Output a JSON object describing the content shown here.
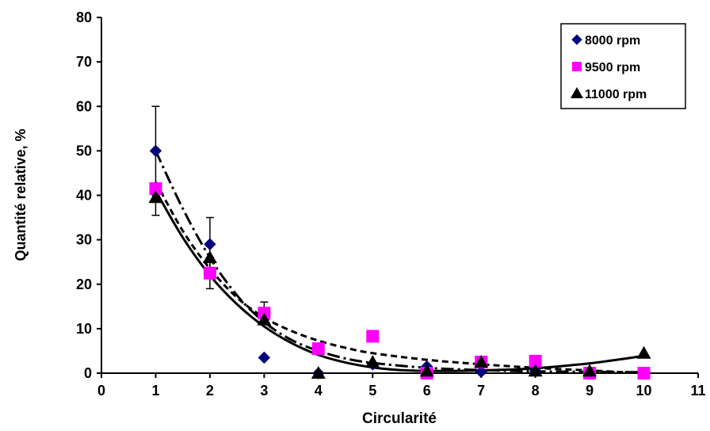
{
  "chart_data": {
    "type": "scatter",
    "xlabel": "Circularité",
    "ylabel": "Quantité relative, %",
    "xlim": [
      0,
      11
    ],
    "ylim": [
      0,
      80
    ],
    "x_ticks": [
      "0",
      "1",
      "2",
      "3",
      "4",
      "5",
      "6",
      "7",
      "8",
      "9",
      "10",
      "11"
    ],
    "y_ticks": [
      "0",
      "10",
      "20",
      "30",
      "40",
      "50",
      "60",
      "70",
      "80"
    ],
    "grid": false,
    "legend_position": "top-right",
    "series": [
      {
        "name": "8000 rpm",
        "marker": "diamond",
        "color": "#000080",
        "x": [
          1,
          2,
          3,
          4,
          5,
          6,
          7,
          8,
          9,
          10
        ],
        "y": [
          50,
          29,
          3.5,
          0,
          2,
          1.5,
          0.3,
          0.5,
          0.3,
          0
        ],
        "error_bars": [
          {
            "x": 1,
            "low": 40,
            "high": 60
          },
          {
            "x": 2,
            "low": 23,
            "high": 35
          }
        ],
        "trendline": {
          "style": "dash-dot",
          "x": [
            1,
            1.5,
            2,
            2.5,
            3,
            3.5,
            4,
            4.5,
            5,
            6,
            7,
            8,
            9,
            10
          ],
          "y": [
            50,
            37,
            26,
            17.5,
            11.5,
            7.5,
            5,
            3.3,
            2.3,
            1.2,
            0.7,
            0.4,
            0.3,
            0.2
          ]
        }
      },
      {
        "name": "9500 rpm",
        "marker": "square",
        "color": "#FF00FF",
        "x": [
          1,
          2,
          3,
          4,
          5,
          6,
          7,
          8,
          9,
          10
        ],
        "y": [
          41.5,
          22.5,
          13.5,
          5.5,
          8.3,
          0,
          2.5,
          2.7,
          0,
          0
        ],
        "error_bars": [
          {
            "x": 2,
            "low": 19,
            "high": 26
          },
          {
            "x": 3,
            "low": 11.5,
            "high": 16
          }
        ],
        "trendline": {
          "style": "dashed",
          "x": [
            1,
            1.5,
            2,
            2.5,
            3,
            3.5,
            4,
            4.5,
            5,
            6,
            7,
            8,
            9,
            10
          ],
          "y": [
            43,
            32,
            23.5,
            17,
            12.5,
            9.5,
            7.3,
            5.7,
            4.5,
            3,
            2,
            1.2,
            0.6,
            0
          ]
        }
      },
      {
        "name": "11000 rpm",
        "marker": "triangle",
        "color": "#000000",
        "x": [
          1,
          2,
          3,
          4,
          5,
          6,
          7,
          8,
          9,
          10
        ],
        "y": [
          39.5,
          26,
          12,
          0,
          2.5,
          0.5,
          2.5,
          0.5,
          0.5,
          4.5
        ],
        "error_bars": [
          {
            "x": 1,
            "low": 35.5,
            "high": 42
          }
        ],
        "trendline": {
          "style": "solid",
          "x": [
            1,
            1.5,
            2,
            2.5,
            3,
            3.5,
            4,
            4.5,
            5,
            5.5,
            6,
            6.5,
            7,
            7.5,
            8,
            8.5,
            9,
            9.5,
            10
          ],
          "y": [
            41,
            30.5,
            22,
            15.5,
            10.5,
            6.8,
            4.1,
            2.4,
            1.3,
            0.7,
            0.5,
            0.5,
            0.6,
            0.8,
            1.1,
            1.6,
            2.2,
            3,
            3.9
          ]
        }
      }
    ]
  }
}
